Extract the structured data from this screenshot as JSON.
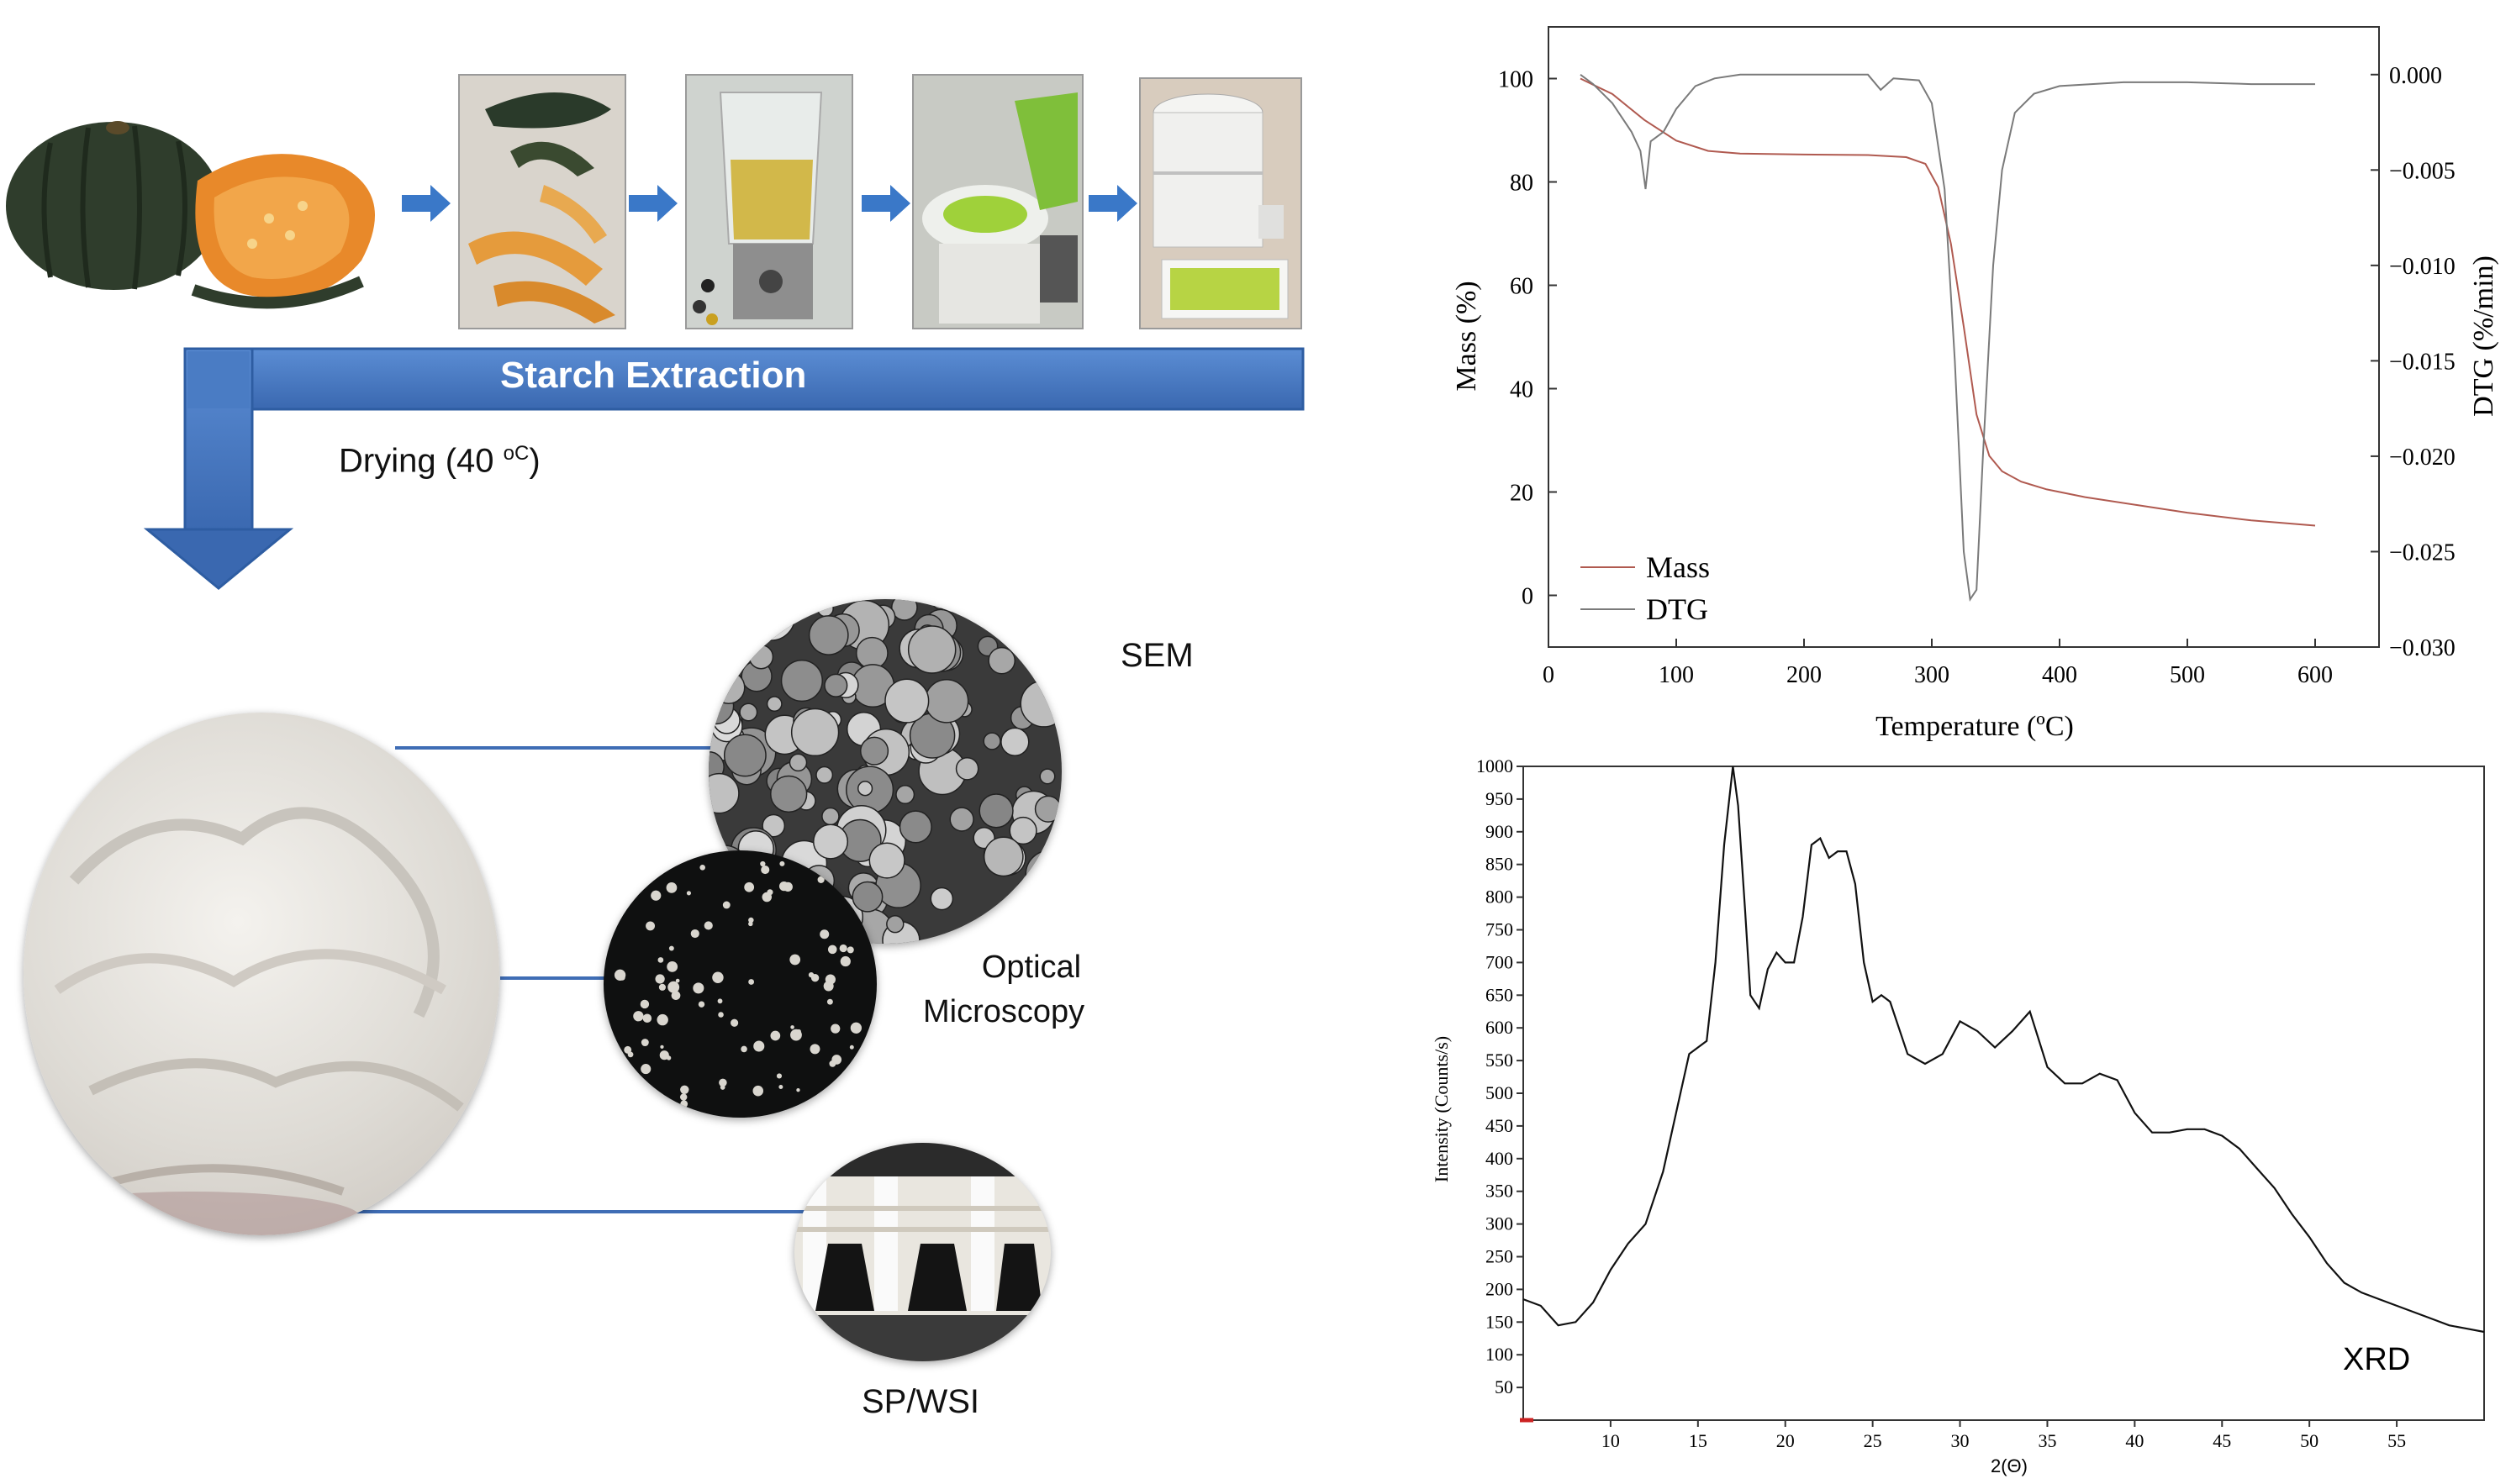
{
  "diagram": {
    "banner_label": "Starch Extraction",
    "drying_label": "Drying (40 ",
    "drying_unit": "oC",
    "drying_close": ")",
    "sem_label": "SEM",
    "optical_label_1": "Optical",
    "optical_label_2": "Microscopy",
    "spwsi_label": "SP/WSI",
    "colors": {
      "arrow_blue": "#4a7cc4",
      "banner_blue": "#4a7cc4",
      "connector_blue": "#3f6db5"
    }
  },
  "chart_data": [
    {
      "type": "line",
      "id": "tga",
      "xlabel": "Temperature (ºC)",
      "ylabel": "Mass (%)",
      "y2label": "DTG (%/min)",
      "xlim": [
        0,
        650
      ],
      "ylim": [
        -10,
        110
      ],
      "y2lim": [
        -0.03,
        0.0025
      ],
      "x_ticks": [
        "0",
        "100",
        "200",
        "300",
        "400",
        "500",
        "600"
      ],
      "y_ticks": [
        "0",
        "20",
        "40",
        "60",
        "80",
        "100"
      ],
      "y2_ticks": [
        "0.000",
        "−0.005",
        "−0.010",
        "−0.015",
        "−0.020",
        "−0.025",
        "−0.030"
      ],
      "legend_position": "bottom-left",
      "series": [
        {
          "name": "Mass",
          "color": "#b05a50",
          "axis": "left",
          "x": [
            25,
            50,
            75,
            100,
            125,
            150,
            200,
            250,
            280,
            295,
            305,
            315,
            325,
            335,
            345,
            355,
            370,
            390,
            420,
            460,
            500,
            550,
            600
          ],
          "y": [
            100,
            97,
            92,
            88,
            86,
            85.5,
            85.3,
            85.2,
            84.8,
            83.5,
            79,
            68,
            52,
            35,
            27,
            24,
            22,
            20.5,
            19,
            17.5,
            16,
            14.5,
            13.5
          ]
        },
        {
          "name": "DTG",
          "color": "#7a7a7a",
          "axis": "right",
          "x": [
            25,
            35,
            50,
            65,
            72,
            76,
            80,
            90,
            100,
            115,
            130,
            150,
            200,
            250,
            260,
            270,
            290,
            300,
            310,
            318,
            325,
            330,
            335,
            340,
            348,
            355,
            365,
            380,
            400,
            450,
            500,
            550,
            600
          ],
          "y": [
            0.0,
            -0.0005,
            -0.0015,
            -0.003,
            -0.004,
            -0.006,
            -0.0035,
            -0.003,
            -0.0018,
            -0.0006,
            -0.0002,
            0.0,
            0.0,
            0.0,
            -0.0008,
            -0.0002,
            -0.0003,
            -0.0015,
            -0.006,
            -0.015,
            -0.025,
            -0.0275,
            -0.027,
            -0.02,
            -0.01,
            -0.005,
            -0.002,
            -0.001,
            -0.0006,
            -0.0004,
            -0.0004,
            -0.0005,
            -0.0005
          ]
        }
      ]
    },
    {
      "type": "line",
      "id": "xrd",
      "xlabel": "2(Θ)",
      "ylabel": "Intensity (Counts/s)",
      "annotation": "XRD",
      "xlim": [
        5,
        60
      ],
      "ylim": [
        0,
        1000
      ],
      "x_ticks": [
        "10",
        "15",
        "20",
        "25",
        "30",
        "35",
        "40",
        "45",
        "50",
        "55"
      ],
      "y_ticks": [
        "50",
        "100",
        "150",
        "200",
        "250",
        "300",
        "350",
        "400",
        "450",
        "500",
        "550",
        "600",
        "650",
        "700",
        "750",
        "800",
        "850",
        "900",
        "950",
        "1000"
      ],
      "series": [
        {
          "color": "#111111",
          "x": [
            5,
            6,
            7,
            8,
            9,
            10,
            11,
            12,
            13,
            14,
            14.5,
            15,
            15.5,
            16,
            16.5,
            17,
            17.3,
            17.7,
            18,
            18.5,
            19,
            19.5,
            20,
            20.5,
            21,
            21.5,
            22,
            22.5,
            23,
            23.5,
            24,
            24.5,
            25,
            25.5,
            26,
            26.5,
            27,
            28,
            29,
            30,
            31,
            32,
            33,
            34,
            35,
            36,
            37,
            38,
            39,
            40,
            41,
            42,
            43,
            44,
            45,
            46,
            47,
            48,
            49,
            50,
            51,
            52,
            53,
            54,
            55,
            56,
            57,
            58,
            59,
            60
          ],
          "y": [
            185,
            175,
            145,
            150,
            180,
            230,
            270,
            300,
            380,
            500,
            560,
            570,
            580,
            700,
            880,
            1000,
            940,
            780,
            650,
            630,
            690,
            715,
            700,
            700,
            770,
            880,
            890,
            860,
            870,
            870,
            820,
            700,
            640,
            650,
            640,
            600,
            560,
            545,
            560,
            610,
            595,
            570,
            595,
            625,
            540,
            515,
            515,
            530,
            520,
            470,
            440,
            440,
            445,
            445,
            435,
            415,
            385,
            355,
            315,
            280,
            240,
            210,
            195,
            185,
            175,
            165,
            155,
            145,
            140,
            135
          ]
        }
      ]
    }
  ]
}
